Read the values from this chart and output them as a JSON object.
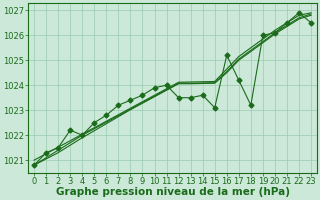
{
  "background_color": "#cce8d8",
  "grid_color": "#99ccb0",
  "line_color": "#1a6b1a",
  "title": "Graphe pression niveau de la mer (hPa)",
  "xlim": [
    -0.5,
    23.5
  ],
  "ylim": [
    1020.5,
    1027.3
  ],
  "yticks": [
    1021,
    1022,
    1023,
    1024,
    1025,
    1026,
    1027
  ],
  "xticks": [
    0,
    1,
    2,
    3,
    4,
    5,
    6,
    7,
    8,
    9,
    10,
    11,
    12,
    13,
    14,
    15,
    16,
    17,
    18,
    19,
    20,
    21,
    22,
    23
  ],
  "series": [
    {
      "x": [
        0,
        1,
        2,
        3,
        4,
        5,
        6,
        7,
        8,
        9,
        10,
        11,
        12,
        13,
        14,
        15,
        16,
        17,
        18,
        19,
        20,
        21,
        22,
        23
      ],
      "y": [
        1021.0,
        1021.26,
        1021.52,
        1021.78,
        1022.04,
        1022.3,
        1022.56,
        1022.82,
        1023.08,
        1023.34,
        1023.6,
        1023.86,
        1024.12,
        1024.13,
        1024.14,
        1024.15,
        1024.65,
        1025.15,
        1025.5,
        1025.85,
        1026.2,
        1026.5,
        1026.8,
        1026.9
      ],
      "marker": null,
      "markersize": 0
    },
    {
      "x": [
        0,
        1,
        2,
        3,
        4,
        5,
        6,
        7,
        8,
        9,
        10,
        11,
        12,
        13,
        14,
        15,
        16,
        17,
        18,
        19,
        20,
        21,
        22,
        23
      ],
      "y": [
        1020.8,
        1021.1,
        1021.4,
        1021.7,
        1022.0,
        1022.26,
        1022.52,
        1022.78,
        1023.04,
        1023.3,
        1023.56,
        1023.82,
        1024.08,
        1024.08,
        1024.09,
        1024.1,
        1024.55,
        1025.05,
        1025.4,
        1025.75,
        1026.1,
        1026.4,
        1026.7,
        1026.85
      ],
      "marker": null,
      "markersize": 0
    },
    {
      "x": [
        0,
        1,
        2,
        3,
        4,
        5,
        6,
        7,
        8,
        9,
        10,
        11,
        12,
        13,
        14,
        15,
        16,
        17,
        18,
        19,
        20,
        21,
        22,
        23
      ],
      "y": [
        1020.8,
        1021.05,
        1021.3,
        1021.6,
        1021.9,
        1022.18,
        1022.46,
        1022.74,
        1023.02,
        1023.28,
        1023.54,
        1023.8,
        1024.06,
        1024.06,
        1024.07,
        1024.08,
        1024.5,
        1025.0,
        1025.35,
        1025.7,
        1026.05,
        1026.35,
        1026.65,
        1026.8
      ],
      "marker": null,
      "markersize": 0
    },
    {
      "x": [
        0,
        1,
        2,
        3,
        4,
        5,
        6,
        7,
        8,
        9,
        10,
        11,
        12,
        13,
        14,
        15,
        16,
        17,
        18,
        19,
        20,
        21,
        22,
        23
      ],
      "y": [
        1020.8,
        1021.3,
        1021.5,
        1022.2,
        1022.0,
        1022.5,
        1022.8,
        1023.2,
        1023.4,
        1023.6,
        1023.9,
        1024.0,
        1023.5,
        1023.5,
        1023.6,
        1023.1,
        1025.2,
        1024.2,
        1023.2,
        1026.0,
        1026.1,
        1026.5,
        1026.9,
        1026.5
      ],
      "marker": "D",
      "markersize": 2.5
    }
  ],
  "title_fontsize": 7.5,
  "tick_fontsize": 6,
  "title_color": "#1a6b1a",
  "tick_color": "#1a6b1a"
}
